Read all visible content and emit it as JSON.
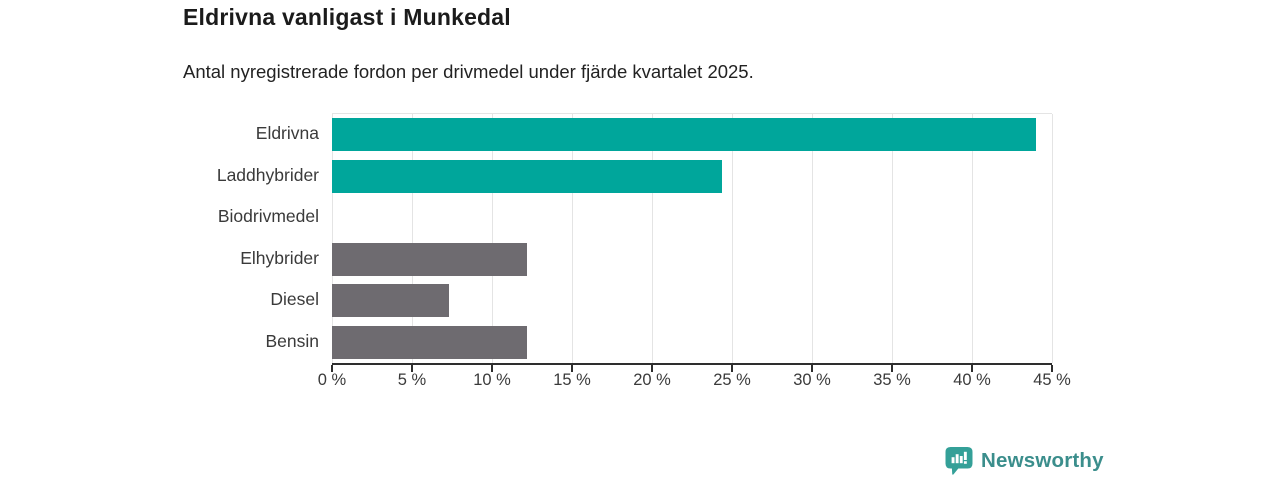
{
  "chart_data": {
    "type": "bar",
    "orientation": "horizontal",
    "title": "Eldrivna vanligast i Munkedal",
    "subtitle": "Antal nyregistrerade fordon per drivmedel under fjärde kvartalet 2025.",
    "categories": [
      "Eldrivna",
      "Laddhybrider",
      "Biodrivmedel",
      "Elhybrider",
      "Diesel",
      "Bensin"
    ],
    "values": [
      44.0,
      24.4,
      0,
      12.2,
      7.3,
      12.2
    ],
    "bar_colors": [
      "#00a69b",
      "#00a69b",
      "#00a69b",
      "#6e6b70",
      "#6e6b70",
      "#6e6b70"
    ],
    "xlabel": "",
    "ylabel": "",
    "unit": "%",
    "xlim": [
      0,
      45
    ],
    "x_ticks": [
      0,
      5,
      10,
      15,
      20,
      25,
      30,
      35,
      40,
      45
    ],
    "x_tick_labels": [
      "0 %",
      "5 %",
      "10 %",
      "15 %",
      "20 %",
      "25 %",
      "30 %",
      "35 %",
      "40 %",
      "45 %"
    ],
    "grid": "vertical",
    "legend": "none"
  },
  "branding": {
    "logo_text": "Newsworthy",
    "logo_icon": "newsworthy-pin-bar-chart-icon",
    "icon_color": "#34a098",
    "text_color": "#3b8e8c"
  },
  "colors": {
    "accent_teal": "#00a69b",
    "neutral_gray": "#6e6b70",
    "axis": "#2e2e2e",
    "grid": "#e4e4e4",
    "title_text": "#1b1b1b",
    "label_text": "#3a3a3a",
    "background": "#ffffff"
  }
}
